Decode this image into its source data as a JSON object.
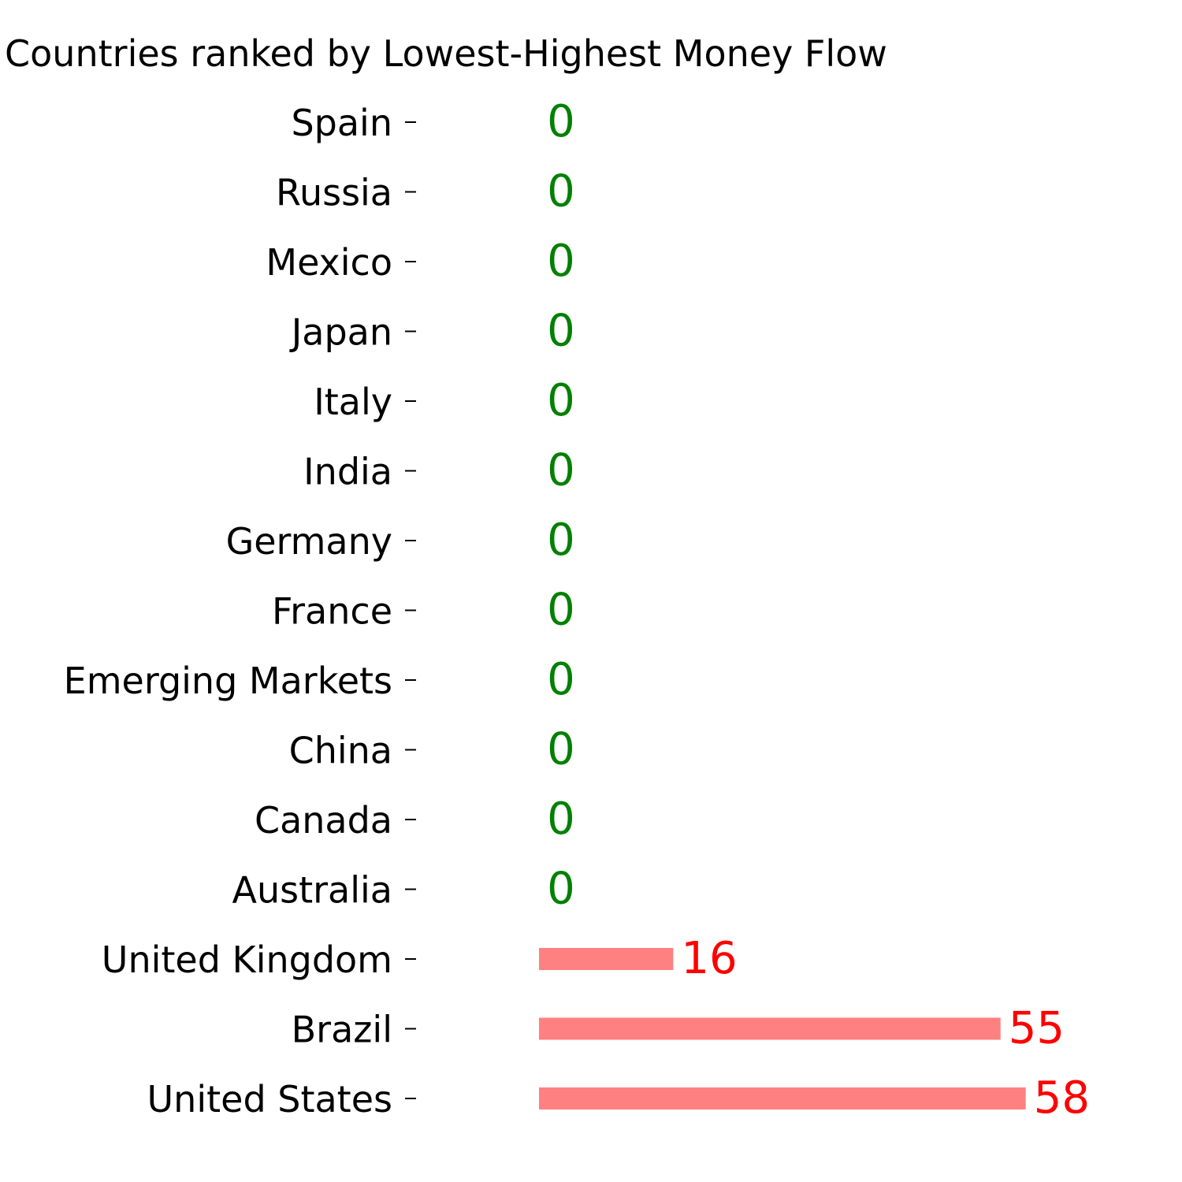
{
  "chart_data": {
    "type": "bar",
    "orientation": "horizontal",
    "title": "Countries ranked by Lowest-Highest Money Flow",
    "xlabel": "",
    "ylabel": "",
    "categories": [
      "Spain",
      "Russia",
      "Mexico",
      "Japan",
      "Italy",
      "India",
      "Germany",
      "France",
      "Emerging Markets",
      "China",
      "Canada",
      "Australia",
      "United Kingdom",
      "Brazil",
      "United States"
    ],
    "values": [
      0,
      0,
      0,
      0,
      0,
      0,
      0,
      0,
      0,
      0,
      0,
      0,
      16,
      55,
      58
    ],
    "xlim": [
      -3,
      75
    ],
    "grid": false,
    "legend": "none",
    "colors": {
      "bar": "#ff8080",
      "label_positive": "#ff0000",
      "label_zero": "#008000",
      "text": "#000000"
    }
  }
}
